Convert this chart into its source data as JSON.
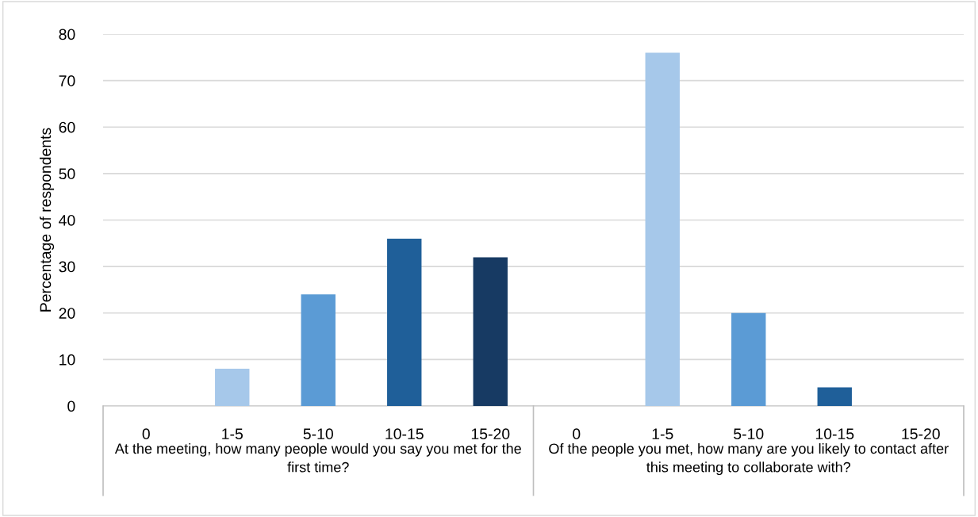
{
  "chart_data": {
    "type": "bar",
    "ylabel": "Percentage of respondents",
    "categories": [
      "0",
      "1-5",
      "5-10",
      "10-15",
      "15-20",
      "0",
      "1-5",
      "5-10",
      "10-15",
      "15-20"
    ],
    "values": [
      0,
      8,
      24,
      36,
      32,
      0,
      76,
      20,
      4,
      0
    ],
    "colors": [
      "#a6c8ea",
      "#a6c8ea",
      "#5b9bd5",
      "#1f5f99",
      "#173a63",
      "#a6c8ea",
      "#a6c8ea",
      "#5b9bd5",
      "#1f5f99",
      "#173a63"
    ],
    "ylim": [
      0,
      80
    ],
    "yticks": [
      0,
      10,
      20,
      30,
      40,
      50,
      60,
      70,
      80
    ],
    "grid": "y",
    "legend": false,
    "annotations": [
      "At the meeting, how many people would you say you met for the first time?",
      "Of the people you met, how many are you likely to contact after this meeting to collaborate with?"
    ]
  }
}
